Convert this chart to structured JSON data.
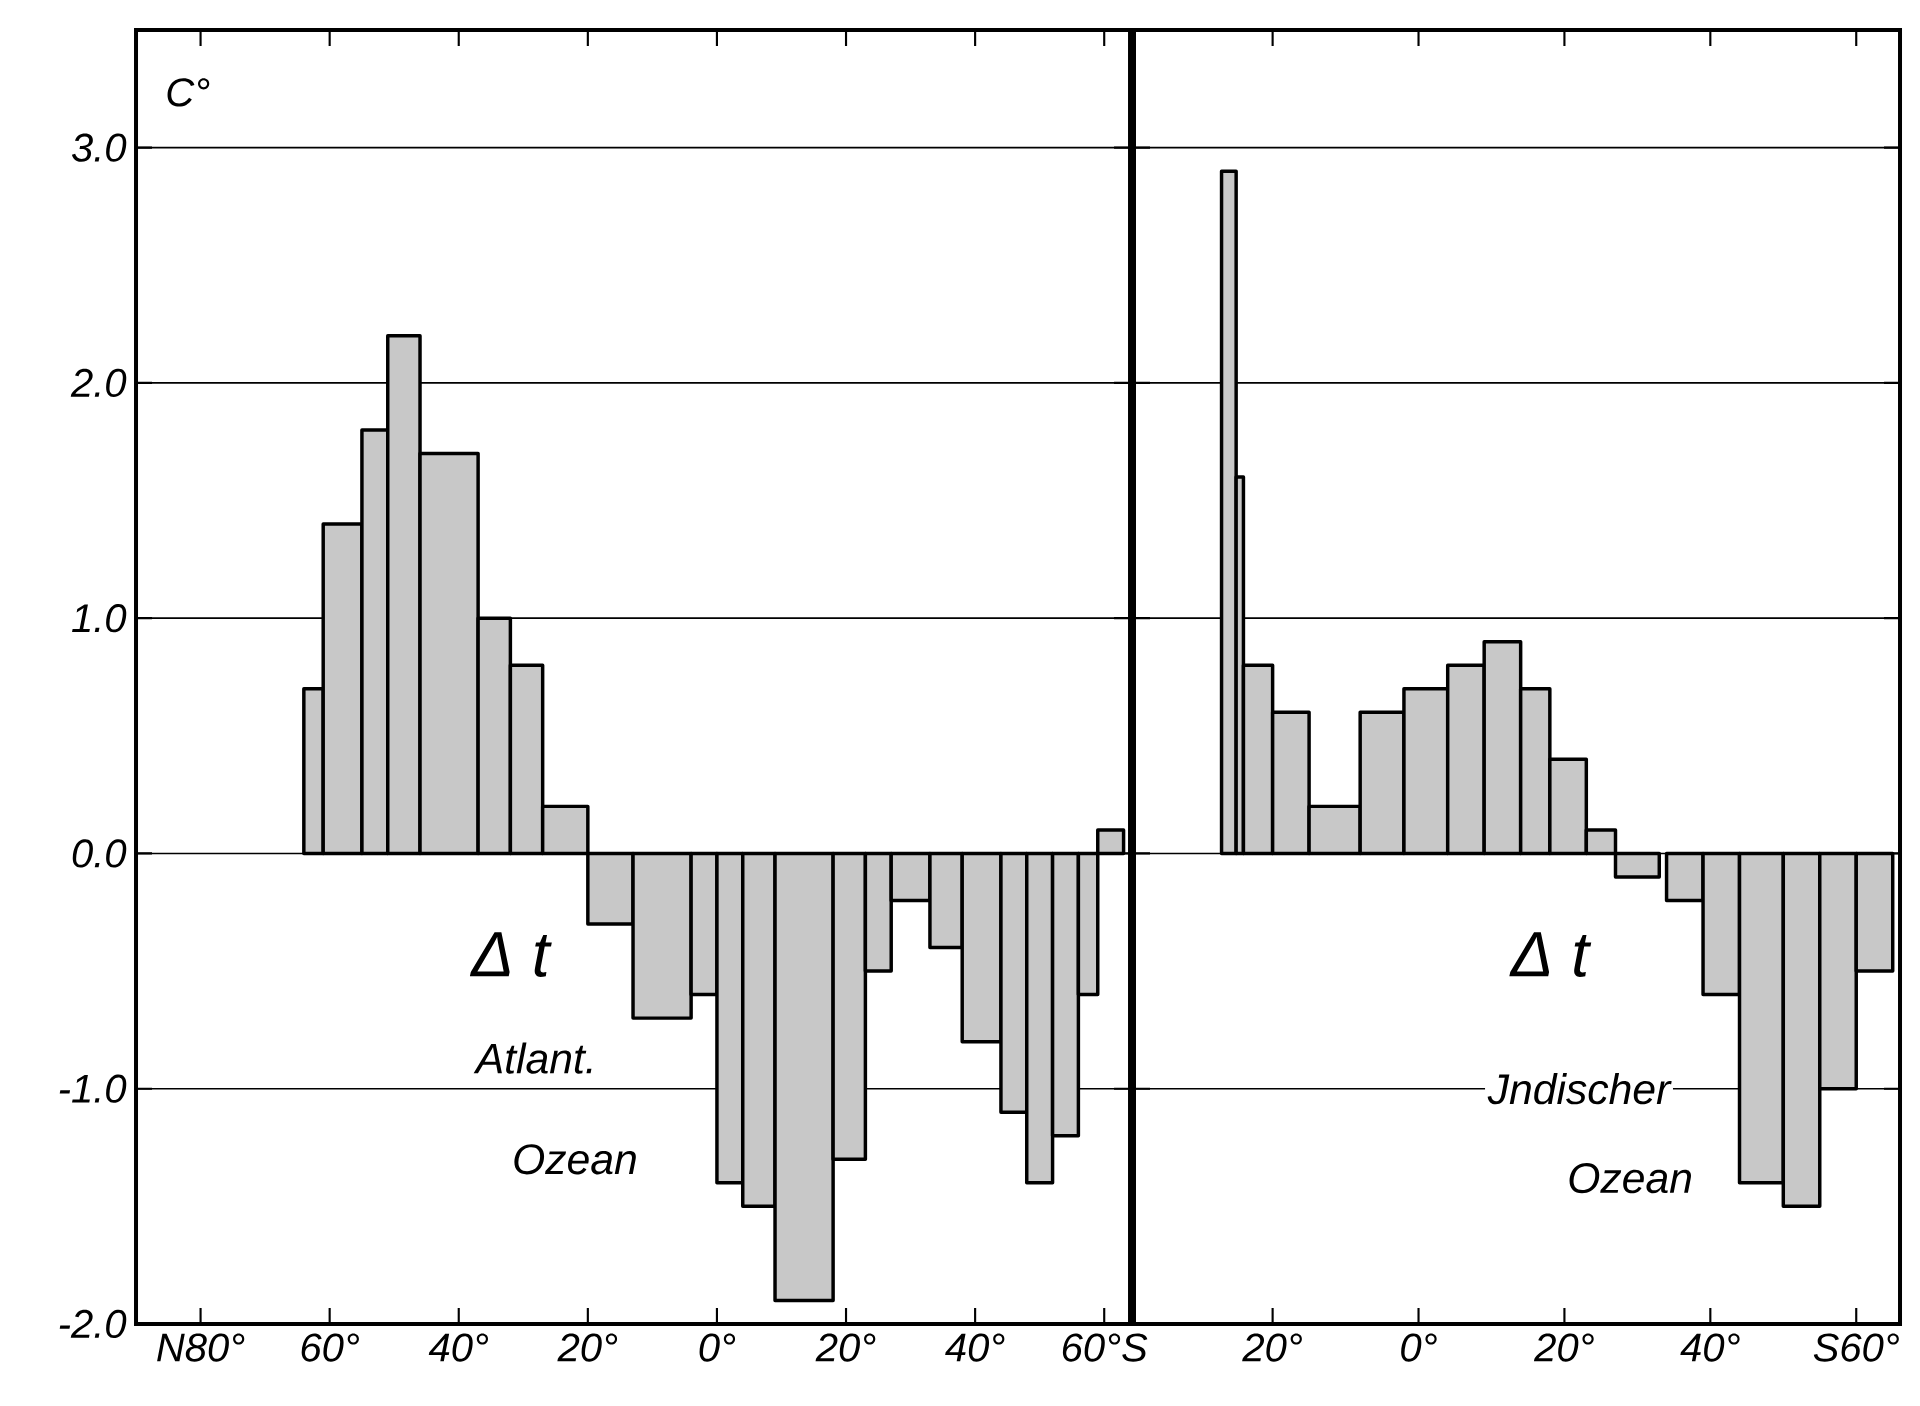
{
  "chart_data": [
    {
      "type": "histogram",
      "ylabel": "C°",
      "color": "#c8c8c8",
      "grid": "y",
      "bins": [
        -64,
        -61,
        -55,
        -51,
        -46,
        -37,
        -32,
        -27,
        -20,
        -13,
        -4,
        0,
        4,
        9,
        18,
        23,
        27,
        33,
        38,
        44,
        48,
        52,
        56,
        59,
        63
      ],
      "values": [
        0.7,
        1.4,
        1.8,
        2.2,
        1.7,
        1.0,
        0.8,
        0.2,
        -0.3,
        -0.7,
        -0.6,
        -1.4,
        -1.5,
        -1.9,
        -1.3,
        -0.5,
        -0.2,
        -0.4,
        -0.8,
        -1.1,
        -1.4,
        -1.2,
        -0.6,
        0.1
      ],
      "xlim": [
        -90,
        64
      ],
      "ylim": [
        -2,
        3.5
      ],
      "xticks": [
        {
          "value": -80,
          "label": "N80°"
        },
        {
          "value": -60,
          "label": "60°"
        },
        {
          "value": -40,
          "label": "40°"
        },
        {
          "value": -20,
          "label": "20°"
        },
        {
          "value": 0,
          "label": "0°"
        },
        {
          "value": 20,
          "label": "20°"
        },
        {
          "value": 40,
          "label": "40°"
        },
        {
          "value": 60,
          "label": "60°S"
        }
      ],
      "yticks": [
        {
          "value": -2,
          "label": "-2.0"
        },
        {
          "value": -1,
          "label": "-1.0"
        },
        {
          "value": 0,
          "label": "0.0"
        },
        {
          "value": 1,
          "label": "1.0"
        },
        {
          "value": 2,
          "label": "2.0"
        },
        {
          "value": 3,
          "label": "3.0"
        }
      ],
      "annotations": [
        "Δ t",
        "Atlant.",
        "Ozean"
      ]
    },
    {
      "type": "histogram",
      "color": "#c8c8c8",
      "grid": "y",
      "tick_labels": "x",
      "bins": [
        -27,
        -25,
        -24,
        -20,
        -15,
        -8,
        -2,
        4,
        9,
        14,
        18,
        23,
        27,
        33,
        34,
        39,
        44,
        50,
        55,
        60,
        65
      ],
      "values": [
        2.9,
        1.6,
        0.8,
        0.6,
        0.2,
        0.6,
        0.7,
        0.8,
        0.9,
        0.7,
        0.4,
        0.1,
        -0.1,
        null,
        -0.2,
        -0.6,
        -1.4,
        -1.5,
        -1.0,
        -0.5
      ],
      "xlim": [
        -39,
        66
      ],
      "ylim": [
        -2,
        3.5
      ],
      "xticks": [
        {
          "value": -20,
          "label": "20°"
        },
        {
          "value": 0,
          "label": "0°"
        },
        {
          "value": 20,
          "label": "20°"
        },
        {
          "value": 40,
          "label": "40°"
        },
        {
          "value": 60,
          "label": "S60°"
        }
      ],
      "yticks": [
        {
          "value": -2,
          "label": null
        },
        {
          "value": -1,
          "label": null
        },
        {
          "value": 0,
          "label": null
        },
        {
          "value": 1,
          "label": null
        },
        {
          "value": 2,
          "label": null
        },
        {
          "value": 3,
          "label": null
        }
      ],
      "annotations": [
        "Δ t",
        "Jndischer",
        "Ozean"
      ]
    }
  ]
}
